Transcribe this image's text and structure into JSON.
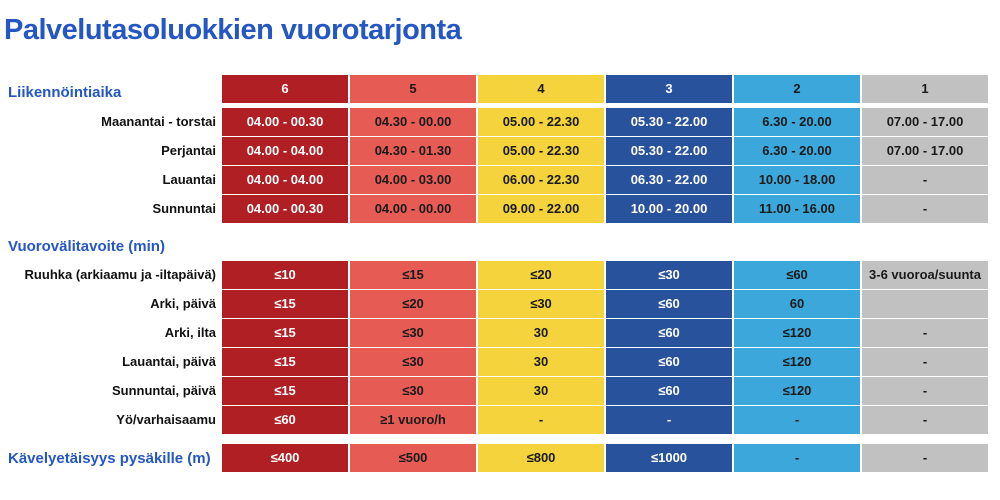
{
  "title": "Palvelutasoluokkien vuorotarjonta",
  "colors": [
    "#b01f24",
    "#e65c55",
    "#f4d33d",
    "#28529b",
    "#3ba7da",
    "#c1c1c1"
  ],
  "text_colors": [
    "#ffffff",
    "#1a1a1a",
    "#1a1a1a",
    "#ffffff",
    "#1a1a1a",
    "#1a1a1a"
  ],
  "classes": [
    "6",
    "5",
    "4",
    "3",
    "2",
    "1"
  ],
  "sections": {
    "hours": {
      "title": "Liikennöintiaika",
      "rows": [
        {
          "label": "Maanantai - torstai",
          "values": [
            "04.00 - 00.30",
            "04.30 - 00.00",
            "05.00 - 22.30",
            "05.30 - 22.00",
            "6.30 - 20.00",
            "07.00 - 17.00"
          ]
        },
        {
          "label": "Perjantai",
          "values": [
            "04.00 - 04.00",
            "04.30 - 01.30",
            "05.00 - 22.30",
            "05.30 - 22.00",
            "6.30 - 20.00",
            "07.00 - 17.00"
          ]
        },
        {
          "label": "Lauantai",
          "values": [
            "04.00 - 04.00",
            "04.00 - 03.00",
            "06.00 - 22.30",
            "06.30 - 22.00",
            "10.00 - 18.00",
            "-"
          ]
        },
        {
          "label": "Sunnuntai",
          "values": [
            "04.00 - 00.30",
            "04.00 - 00.00",
            "09.00 - 22.00",
            "10.00 - 20.00",
            "11.00 - 16.00",
            "-"
          ]
        }
      ]
    },
    "headway": {
      "title": "Vuorovälitavoite (min)",
      "rows": [
        {
          "label": "Ruuhka (arkiaamu ja -iltapäivä)",
          "values": [
            "≤10",
            "≤15",
            "≤20",
            "≤30",
            "≤60",
            "3-6 vuoroa/suunta"
          ]
        },
        {
          "label": "Arki, päivä",
          "values": [
            "≤15",
            "≤20",
            "≤30",
            "≤60",
            "60",
            ""
          ]
        },
        {
          "label": "Arki, ilta",
          "values": [
            "≤15",
            "≤30",
            "30",
            "≤60",
            "≤120",
            "-"
          ]
        },
        {
          "label": "Lauantai, päivä",
          "values": [
            "≤15",
            "≤30",
            "30",
            "≤60",
            "≤120",
            "-"
          ]
        },
        {
          "label": "Sunnuntai, päivä",
          "values": [
            "≤15",
            "≤30",
            "30",
            "≤60",
            "≤120",
            "-"
          ]
        },
        {
          "label": "Yö/varhaisaamu",
          "values": [
            "≤60",
            "≥1 vuoro/h",
            "-",
            "-",
            "-",
            "-"
          ]
        }
      ]
    },
    "walk": {
      "title": "Kävelyetäisyys pysäkille (m)",
      "values": [
        "≤400",
        "≤500",
        "≤800",
        "≤1000",
        "-",
        "-"
      ]
    }
  }
}
